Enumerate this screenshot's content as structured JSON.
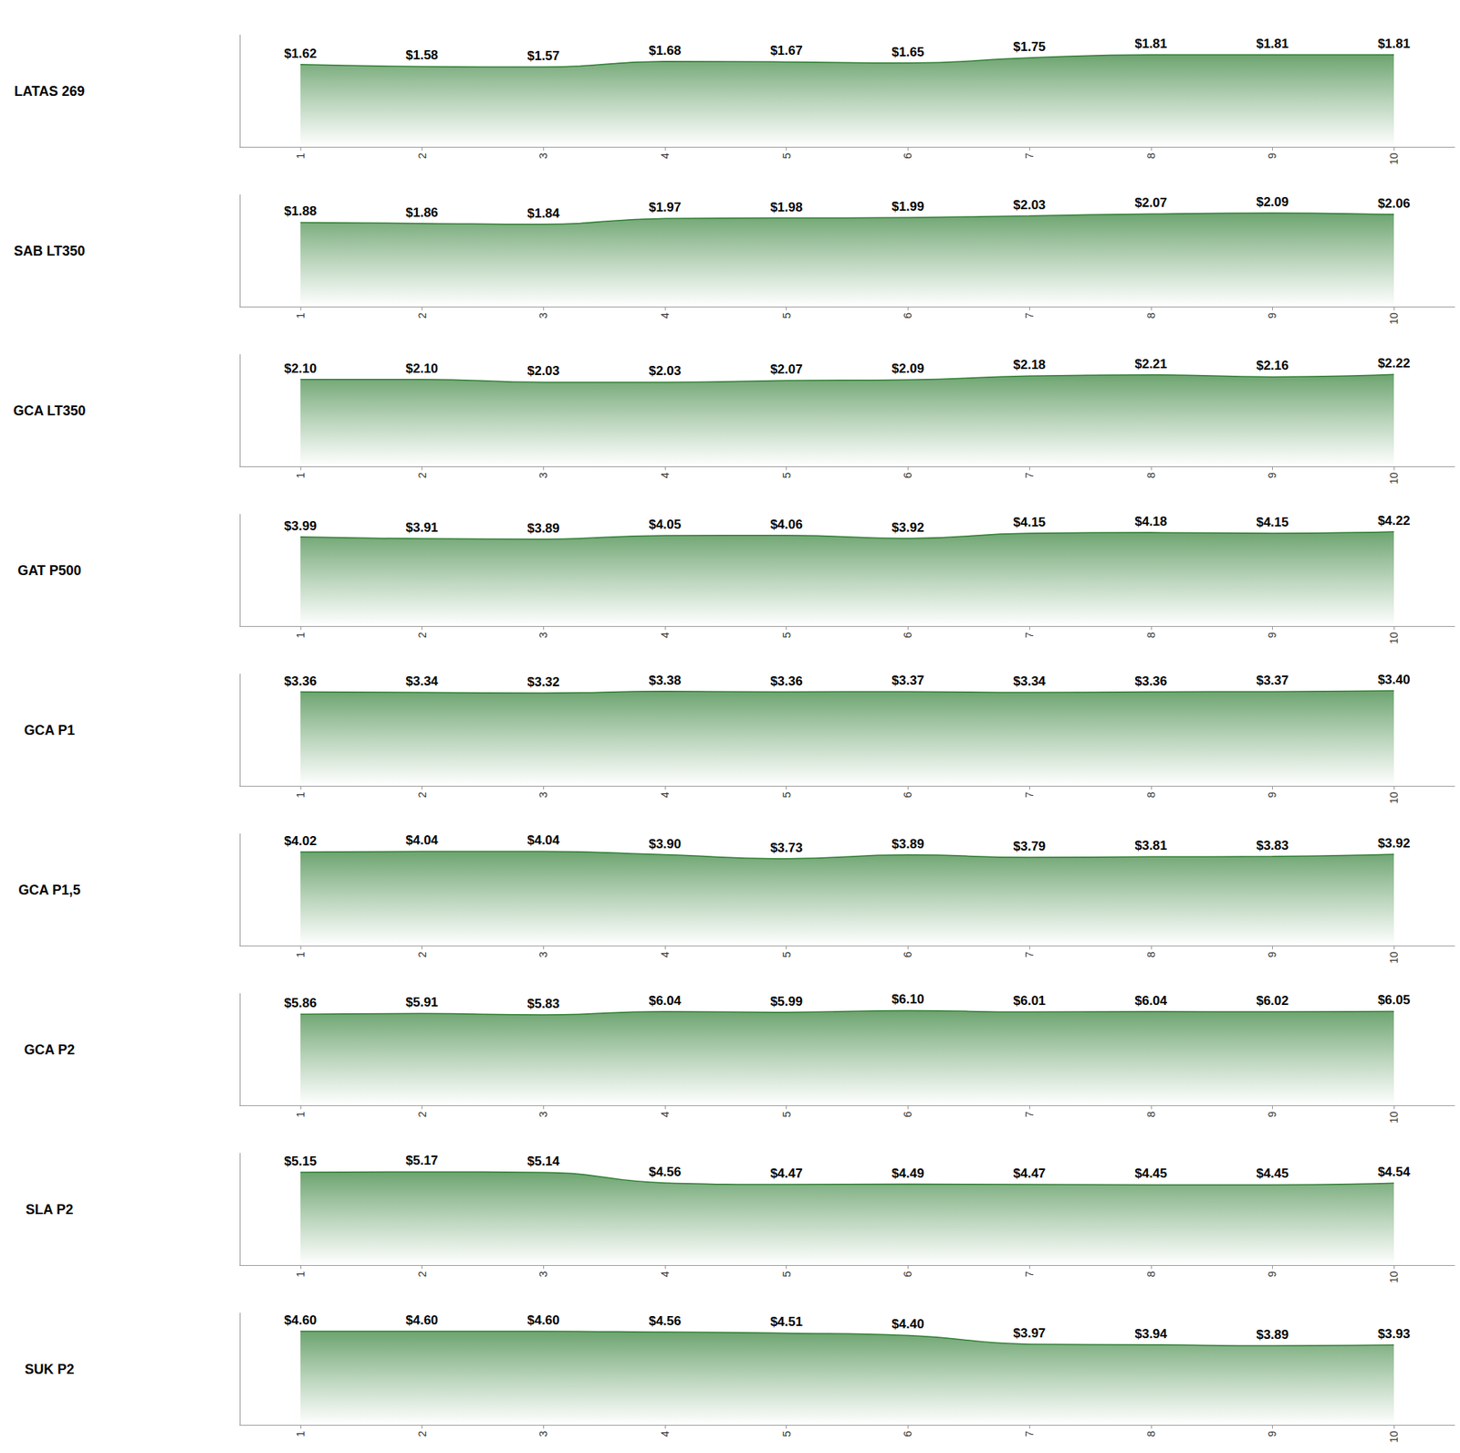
{
  "chart_data": [
    {
      "type": "area",
      "title": "LATAS 269",
      "categories": [
        "1",
        "2",
        "3",
        "4",
        "5",
        "6",
        "7",
        "8",
        "9",
        "10"
      ],
      "values": [
        1.62,
        1.58,
        1.57,
        1.68,
        1.67,
        1.65,
        1.75,
        1.81,
        1.81,
        1.81
      ],
      "value_labels": [
        "$1.62",
        "$1.58",
        "$1.57",
        "$1.68",
        "$1.67",
        "$1.65",
        "$1.75",
        "$1.81",
        "$1.81",
        "$1.81"
      ],
      "color": "#2e7d32",
      "ylim": [
        0,
        2.2
      ],
      "data_labels": true,
      "tick_labels": "x",
      "grid": false
    },
    {
      "type": "area",
      "title": "SAB LT350",
      "categories": [
        "1",
        "2",
        "3",
        "4",
        "5",
        "6",
        "7",
        "8",
        "9",
        "10"
      ],
      "values": [
        1.88,
        1.86,
        1.84,
        1.97,
        1.98,
        1.99,
        2.03,
        2.07,
        2.09,
        2.06
      ],
      "value_labels": [
        "$1.88",
        "$1.86",
        "$1.84",
        "$1.97",
        "$1.98",
        "$1.99",
        "$2.03",
        "$2.07",
        "$2.09",
        "$2.06"
      ],
      "color": "#2e7d32",
      "ylim": [
        0,
        2.5
      ],
      "data_labels": true,
      "tick_labels": "x",
      "grid": false
    },
    {
      "type": "area",
      "title": "GCA LT350",
      "categories": [
        "1",
        "2",
        "3",
        "4",
        "5",
        "6",
        "7",
        "8",
        "9",
        "10"
      ],
      "values": [
        2.1,
        2.1,
        2.03,
        2.03,
        2.07,
        2.09,
        2.18,
        2.21,
        2.16,
        2.22
      ],
      "value_labels": [
        "$2.10",
        "$2.10",
        "$2.03",
        "$2.03",
        "$2.07",
        "$2.09",
        "$2.18",
        "$2.21",
        "$2.16",
        "$2.22"
      ],
      "color": "#2e7d32",
      "ylim": [
        0,
        2.7
      ],
      "data_labels": true,
      "tick_labels": "x",
      "grid": false
    },
    {
      "type": "area",
      "title": "GAT P500",
      "categories": [
        "1",
        "2",
        "3",
        "4",
        "5",
        "6",
        "7",
        "8",
        "9",
        "10"
      ],
      "values": [
        3.99,
        3.91,
        3.89,
        4.05,
        4.06,
        3.92,
        4.15,
        4.18,
        4.15,
        4.22
      ],
      "value_labels": [
        "$3.99",
        "$3.91",
        "$3.89",
        "$4.05",
        "$4.06",
        "$3.92",
        "$4.15",
        "$4.18",
        "$4.15",
        "$4.22"
      ],
      "color": "#2e7d32",
      "ylim": [
        0,
        5
      ],
      "data_labels": true,
      "tick_labels": "x",
      "grid": false
    },
    {
      "type": "area",
      "title": "GCA P1",
      "categories": [
        "1",
        "2",
        "3",
        "4",
        "5",
        "6",
        "7",
        "8",
        "9",
        "10"
      ],
      "values": [
        3.36,
        3.34,
        3.32,
        3.38,
        3.36,
        3.37,
        3.34,
        3.36,
        3.37,
        3.4
      ],
      "value_labels": [
        "$3.36",
        "$3.34",
        "$3.32",
        "$3.38",
        "$3.36",
        "$3.37",
        "$3.34",
        "$3.36",
        "$3.37",
        "$3.40"
      ],
      "color": "#2e7d32",
      "ylim": [
        0,
        4
      ],
      "data_labels": true,
      "tick_labels": "x",
      "grid": false
    },
    {
      "type": "area",
      "title": "GCA P1,5",
      "categories": [
        "1",
        "2",
        "3",
        "4",
        "5",
        "6",
        "7",
        "8",
        "9",
        "10"
      ],
      "values": [
        4.02,
        4.04,
        4.04,
        3.9,
        3.73,
        3.89,
        3.79,
        3.81,
        3.83,
        3.92
      ],
      "value_labels": [
        "$4.02",
        "$4.04",
        "$4.04",
        "$3.90",
        "$3.73",
        "$3.89",
        "$3.79",
        "$3.81",
        "$3.83",
        "$3.92"
      ],
      "color": "#2e7d32",
      "ylim": [
        0,
        4.8
      ],
      "data_labels": true,
      "tick_labels": "x",
      "grid": false
    },
    {
      "type": "area",
      "title": "GCA P2",
      "categories": [
        "1",
        "2",
        "3",
        "4",
        "5",
        "6",
        "7",
        "8",
        "9",
        "10"
      ],
      "values": [
        5.86,
        5.91,
        5.83,
        6.04,
        5.99,
        6.1,
        6.01,
        6.04,
        6.02,
        6.05
      ],
      "value_labels": [
        "$5.86",
        "$5.91",
        "$5.83",
        "$6.04",
        "$5.99",
        "$6.10",
        "$6.01",
        "$6.04",
        "$6.02",
        "$6.05"
      ],
      "color": "#2e7d32",
      "ylim": [
        0,
        7.2
      ],
      "data_labels": true,
      "tick_labels": "x",
      "grid": false
    },
    {
      "type": "area",
      "title": "SLA P2",
      "categories": [
        "1",
        "2",
        "3",
        "4",
        "5",
        "6",
        "7",
        "8",
        "9",
        "10"
      ],
      "values": [
        5.15,
        5.17,
        5.14,
        4.56,
        4.47,
        4.49,
        4.47,
        4.45,
        4.45,
        4.54
      ],
      "value_labels": [
        "$5.15",
        "$5.17",
        "$5.14",
        "$4.56",
        "$4.47",
        "$4.49",
        "$4.47",
        "$4.45",
        "$4.45",
        "$4.54"
      ],
      "color": "#2e7d32",
      "ylim": [
        0,
        6.2
      ],
      "data_labels": true,
      "tick_labels": "x",
      "grid": false
    },
    {
      "type": "area",
      "title": "SUK P2",
      "categories": [
        "1",
        "2",
        "3",
        "4",
        "5",
        "6",
        "7",
        "8",
        "9",
        "10"
      ],
      "values": [
        4.6,
        4.6,
        4.6,
        4.56,
        4.51,
        4.4,
        3.97,
        3.94,
        3.89,
        3.93
      ],
      "value_labels": [
        "$4.60",
        "$4.60",
        "$4.60",
        "$4.56",
        "$4.51",
        "$4.40",
        "$3.97",
        "$3.94",
        "$3.89",
        "$3.93"
      ],
      "color": "#2e7d32",
      "ylim": [
        0,
        5.5
      ],
      "data_labels": true,
      "tick_labels": "x",
      "grid": false
    }
  ]
}
